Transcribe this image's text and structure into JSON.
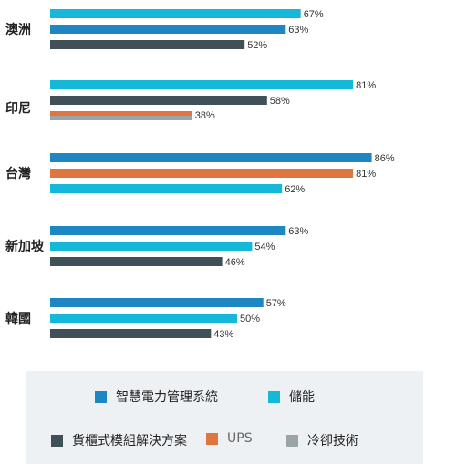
{
  "colors": {
    "smart_power": "#1f86c4",
    "storage": "#15b8d8",
    "rack_module": "#3f5059",
    "ups": "#e0763f",
    "cooling": "#9aa5a8"
  },
  "chart_data": {
    "type": "bar",
    "orientation": "horizontal",
    "xlim": [
      0,
      100
    ],
    "value_suffix": "%",
    "grid": false,
    "legend_position": "bottom",
    "groups": [
      {
        "label": "澳洲",
        "bars": [
          {
            "series": "儲能",
            "value": 67
          },
          {
            "series": "智慧電力管理系統",
            "value": 63
          },
          {
            "series": "貨櫃式模組解決方案",
            "value": 52
          }
        ]
      },
      {
        "label": "印尼",
        "bars": [
          {
            "series": "儲能",
            "value": 81
          },
          {
            "series": "貨櫃式模組解決方案",
            "value": 58
          },
          {
            "series": "UPS",
            "value": 38
          },
          {
            "series": "冷卻技術",
            "value": 38
          }
        ]
      },
      {
        "label": "台灣",
        "bars": [
          {
            "series": "智慧電力管理系統",
            "value": 86
          },
          {
            "series": "UPS",
            "value": 81
          },
          {
            "series": "儲能",
            "value": 62
          }
        ]
      },
      {
        "label": "新加坡",
        "bars": [
          {
            "series": "智慧電力管理系統",
            "value": 63
          },
          {
            "series": "儲能",
            "value": 54
          },
          {
            "series": "貨櫃式模組解決方案",
            "value": 46
          }
        ]
      },
      {
        "label": "韓國",
        "bars": [
          {
            "series": "智慧電力管理系統",
            "value": 57
          },
          {
            "series": "儲能",
            "value": 50
          },
          {
            "series": "貨櫃式模組解決方案",
            "value": 43
          }
        ]
      }
    ],
    "series": [
      {
        "name": "智慧電力管理系統",
        "color_key": "smart_power"
      },
      {
        "name": "儲能",
        "color_key": "storage"
      },
      {
        "name": "貨櫃式模組解決方案",
        "color_key": "rack_module"
      },
      {
        "name": "UPS",
        "color_key": "ups"
      },
      {
        "name": "冷卻技術",
        "color_key": "cooling"
      }
    ]
  },
  "legend": {
    "smart_power": "智慧電力管理系統",
    "storage": "儲能",
    "rack_module": "貨櫃式模組解決方案",
    "ups": "UPS",
    "cooling": "冷卻技術"
  }
}
